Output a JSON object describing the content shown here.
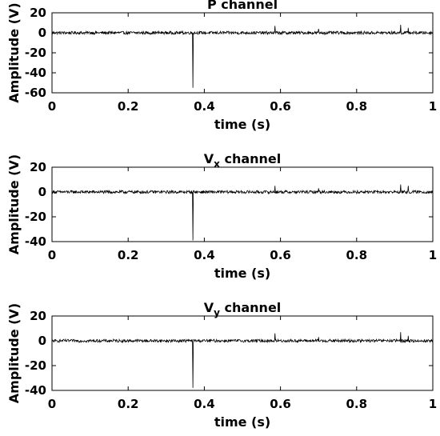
{
  "chart_data": [
    {
      "type": "line",
      "title": "P channel",
      "title_main": "P",
      "title_sub": "",
      "title_rest": "channel",
      "xlabel": "time (s)",
      "ylabel": "Amplitude (V)",
      "xlim": [
        0,
        1
      ],
      "ylim": [
        -60,
        20
      ],
      "xticks": [
        0,
        0.2,
        0.4,
        0.6,
        0.8,
        1
      ],
      "xtick_labels": [
        "0",
        "0.2",
        "0.4",
        "0.6",
        "0.8",
        "1"
      ],
      "yticks": [
        -60,
        -40,
        -20,
        0,
        20
      ],
      "ytick_labels": [
        "-60",
        "-40",
        "-20",
        "0",
        "20"
      ],
      "grid": false,
      "color": "#000000",
      "baseline": 0,
      "noise_amplitude": 1.5,
      "spikes": [
        {
          "x": 0.37,
          "y": -55
        },
        {
          "x": 0.585,
          "y": 7
        },
        {
          "x": 0.7,
          "y": 4
        },
        {
          "x": 0.915,
          "y": 8
        },
        {
          "x": 0.935,
          "y": 5
        }
      ]
    },
    {
      "type": "line",
      "title": "Vx channel",
      "title_main": "V",
      "title_sub": "x",
      "title_rest": "channel",
      "xlabel": "time (s)",
      "ylabel": "Amplitude (V)",
      "xlim": [
        0,
        1
      ],
      "ylim": [
        -40,
        20
      ],
      "xticks": [
        0,
        0.2,
        0.4,
        0.6,
        0.8,
        1
      ],
      "xtick_labels": [
        "0",
        "0.2",
        "0.4",
        "0.6",
        "0.8",
        "1"
      ],
      "yticks": [
        -40,
        -20,
        0,
        20
      ],
      "ytick_labels": [
        "-40",
        "-20",
        "0",
        "20"
      ],
      "grid": false,
      "color": "#000000",
      "baseline": 0,
      "noise_amplitude": 1.2,
      "spikes": [
        {
          "x": 0.37,
          "y": -39
        },
        {
          "x": 0.585,
          "y": 5
        },
        {
          "x": 0.7,
          "y": 3
        },
        {
          "x": 0.915,
          "y": 6
        },
        {
          "x": 0.935,
          "y": 5
        }
      ]
    },
    {
      "type": "line",
      "title": "Vy channel",
      "title_main": "V",
      "title_sub": "y",
      "title_rest": "channel",
      "xlabel": "time (s)",
      "ylabel": "Amplitude (V)",
      "xlim": [
        0,
        1
      ],
      "ylim": [
        -40,
        20
      ],
      "xticks": [
        0,
        0.2,
        0.4,
        0.6,
        0.8,
        1
      ],
      "xtick_labels": [
        "0",
        "0.2",
        "0.4",
        "0.6",
        "0.8",
        "1"
      ],
      "yticks": [
        -40,
        -20,
        0,
        20
      ],
      "ytick_labels": [
        "-40",
        "-20",
        "0",
        "20"
      ],
      "grid": false,
      "color": "#000000",
      "baseline": 0,
      "noise_amplitude": 1.2,
      "spikes": [
        {
          "x": 0.37,
          "y": -38
        },
        {
          "x": 0.585,
          "y": 6
        },
        {
          "x": 0.7,
          "y": 3
        },
        {
          "x": 0.915,
          "y": 7
        },
        {
          "x": 0.935,
          "y": 4
        }
      ]
    }
  ]
}
